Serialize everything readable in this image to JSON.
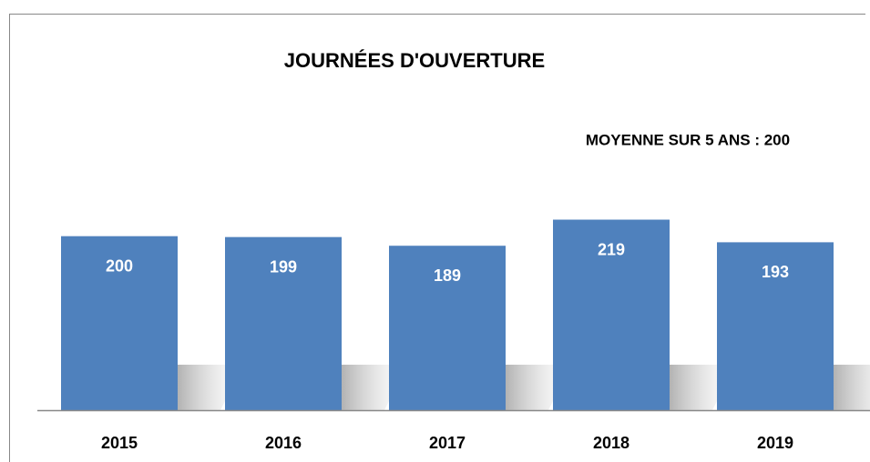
{
  "chart_data": {
    "type": "bar",
    "title": "JOURNÉES D'OUVERTURE",
    "annotation": "MOYENNE SUR 5 ANS : 200",
    "categories": [
      "2015",
      "2016",
      "2017",
      "2018",
      "2019"
    ],
    "values": [
      200,
      199,
      189,
      219,
      193
    ],
    "color": "#4f81bd",
    "ylim": [
      0,
      230
    ]
  }
}
